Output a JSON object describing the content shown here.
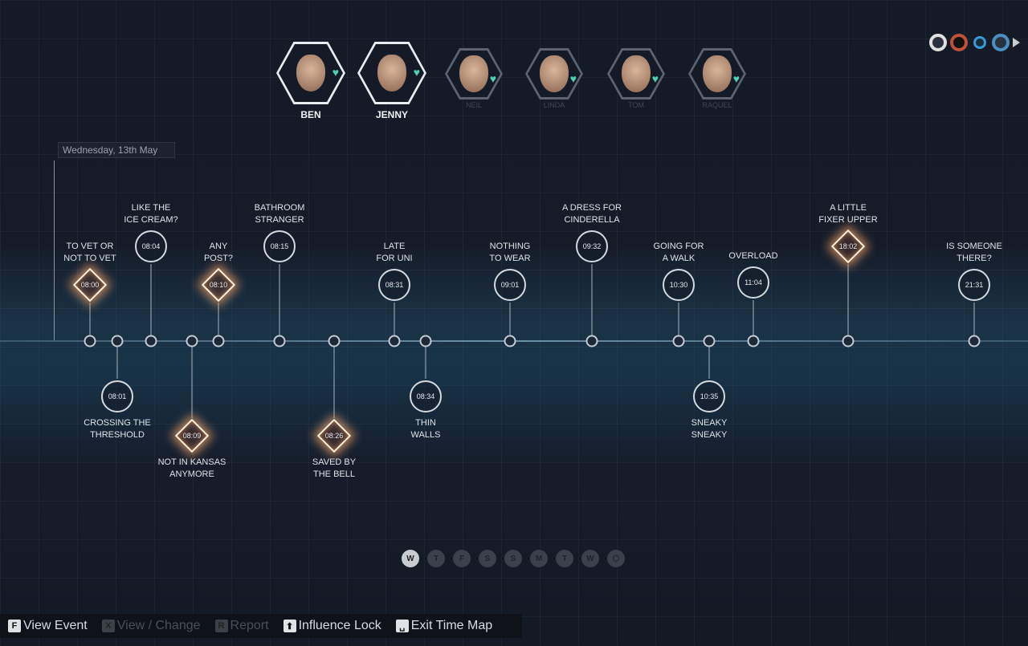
{
  "characters": [
    {
      "name": "BEN",
      "selected": true
    },
    {
      "name": "JENNY",
      "selected": true
    },
    {
      "name": "NEIL",
      "selected": false
    },
    {
      "name": "LINDA",
      "selected": false
    },
    {
      "name": "TOM",
      "selected": false
    },
    {
      "name": "RAQUEL",
      "selected": false
    }
  ],
  "date": "Wednesday, 13th May",
  "events": [
    {
      "title": "TO VET OR\nNOT TO VET",
      "time": "08:00",
      "side": "above",
      "highlighted": true
    },
    {
      "title": "CROSSING THE\nTHRESHOLD",
      "time": "08:01",
      "side": "below",
      "highlighted": false
    },
    {
      "title": "LIKE THE\nICE CREAM?",
      "time": "08:04",
      "side": "above",
      "highlighted": false
    },
    {
      "title": "NOT IN KANSAS\nANYMORE",
      "time": "08:09",
      "side": "below",
      "highlighted": true
    },
    {
      "title": "ANY\nPOST?",
      "time": "08:10",
      "side": "above",
      "highlighted": true
    },
    {
      "title": "BATHROOM\nSTRANGER",
      "time": "08:15",
      "side": "above",
      "highlighted": false
    },
    {
      "title": "SAVED BY\nTHE BELL",
      "time": "08:26",
      "side": "below",
      "highlighted": true
    },
    {
      "title": "LATE\nFOR UNI",
      "time": "08:31",
      "side": "above",
      "highlighted": false
    },
    {
      "title": "THIN\nWALLS",
      "time": "08:34",
      "side": "below",
      "highlighted": false
    },
    {
      "title": "NOTHING\nTO WEAR",
      "time": "09:01",
      "side": "above",
      "highlighted": false
    },
    {
      "title": "A DRESS FOR\nCINDERELLA",
      "time": "09:32",
      "side": "above",
      "highlighted": false
    },
    {
      "title": "GOING FOR\nA WALK",
      "time": "10:30",
      "side": "above",
      "highlighted": false
    },
    {
      "title": "SNEAKY\nSNEAKY",
      "time": "10:35",
      "side": "below",
      "highlighted": false
    },
    {
      "title": "OVERLOAD",
      "time": "11:04",
      "side": "above",
      "highlighted": false
    },
    {
      "title": "A LITTLE\nFIXER UPPER",
      "time": "18:02",
      "side": "above",
      "highlighted": true
    },
    {
      "title": "IS SOMEONE\nTHERE?",
      "time": "21:31",
      "side": "above",
      "highlighted": false
    }
  ],
  "days": [
    {
      "label": "W",
      "active": true
    },
    {
      "label": "T"
    },
    {
      "label": "F"
    },
    {
      "label": "S"
    },
    {
      "label": "S"
    },
    {
      "label": "M"
    },
    {
      "label": "T"
    },
    {
      "label": "W"
    },
    {
      "label": "",
      "icon": "hexagon-icon"
    }
  ],
  "modes": [
    {
      "icon": "circle-icon",
      "color": "#e0e0e0"
    },
    {
      "icon": "eye-icon",
      "color": "#c0503a"
    },
    {
      "icon": "diamond-icon",
      "color": "#3a9ad8"
    },
    {
      "icon": "target-icon",
      "color": "#4a8fc0"
    },
    {
      "icon": "play-arrow-icon",
      "color": "#c8ccd0"
    }
  ],
  "footer": [
    {
      "key": "F",
      "label": "View Event",
      "enabled": true
    },
    {
      "key": "X",
      "label": "View / Change",
      "enabled": false
    },
    {
      "key": "R",
      "label": "Report",
      "enabled": false
    },
    {
      "key": "⬆",
      "label": "Influence Lock",
      "enabled": true
    },
    {
      "key": "␣",
      "label": "Exit Time Map",
      "enabled": true
    }
  ]
}
